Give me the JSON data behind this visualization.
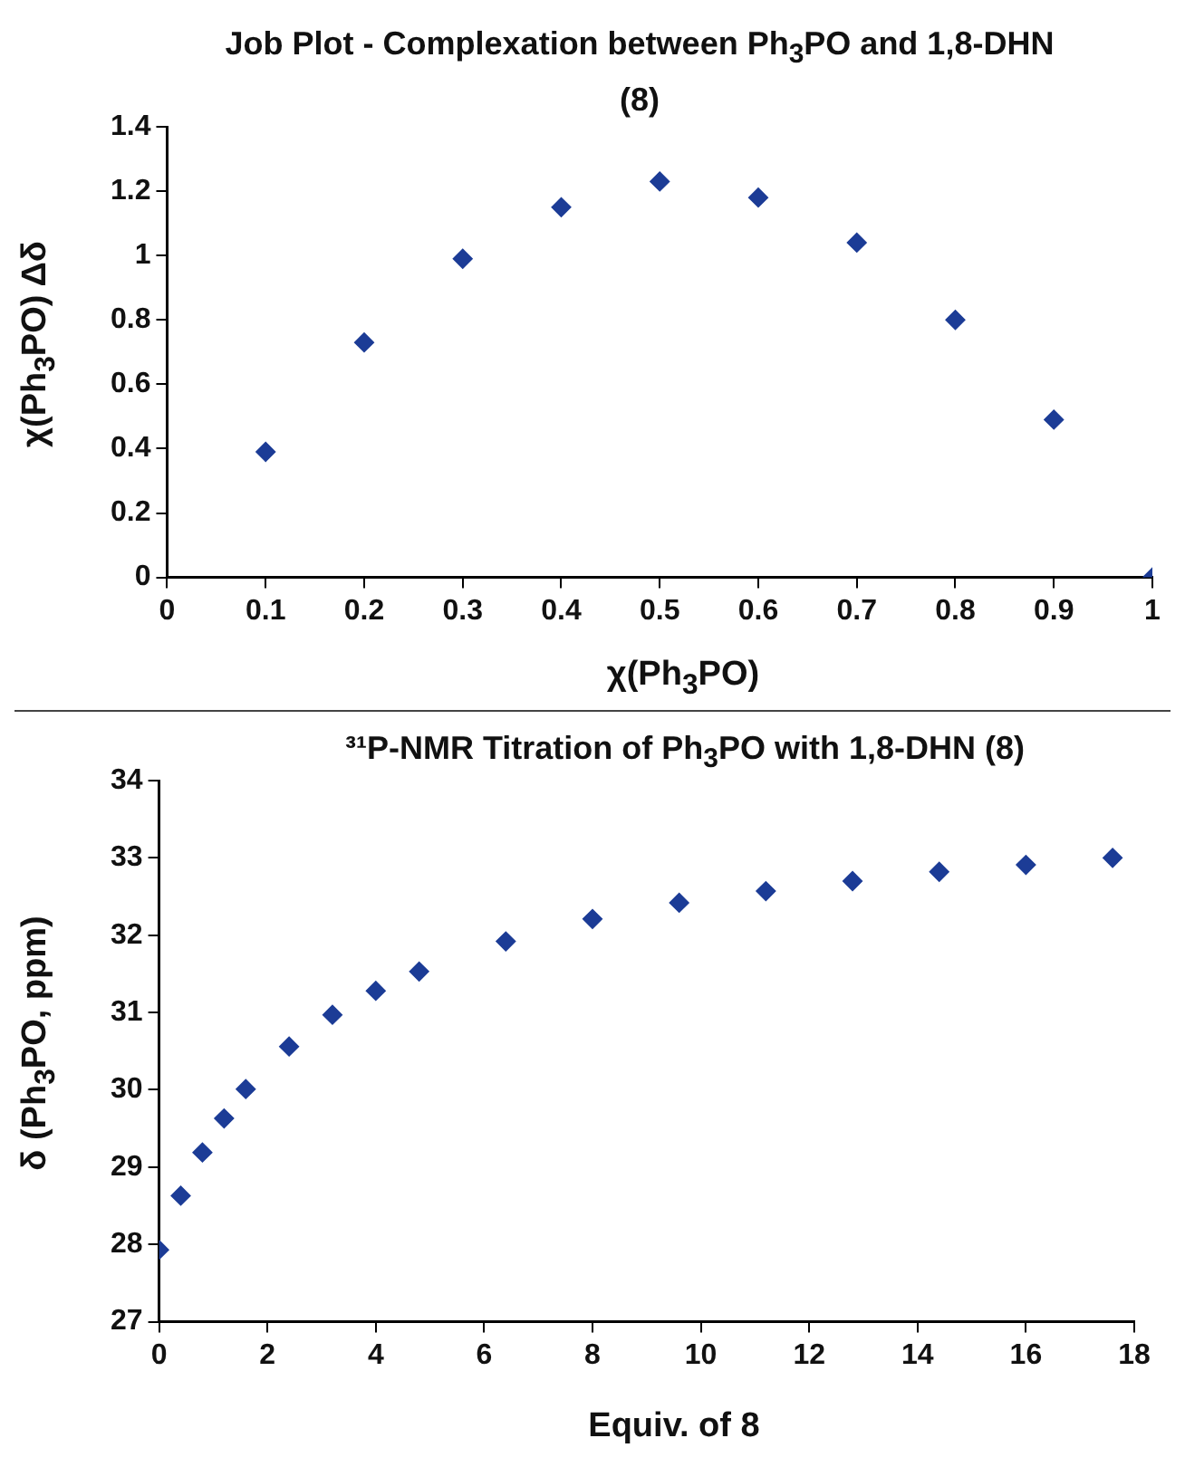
{
  "chart_data": [
    {
      "type": "scatter",
      "title": "Job Plot - Complexation between Ph$_{3}$PO and 1,8-DHN (8)",
      "xlabel": "χ(Ph$_{3}$PO)",
      "ylabel": "χ(Ph$_{3}$PO) Δδ",
      "x": [
        0.1,
        0.2,
        0.3,
        0.4,
        0.5,
        0.6,
        0.7,
        0.8,
        0.9,
        1
      ],
      "values": [
        0.39,
        0.73,
        0.99,
        1.15,
        1.23,
        1.18,
        1.04,
        0.8,
        0.49,
        0
      ],
      "color": "#1c3c96",
      "marker": "diamond",
      "xlim": [
        0,
        1
      ],
      "xticks": [
        0,
        0.1,
        0.2,
        0.3,
        0.4,
        0.5,
        0.6,
        0.7,
        0.8,
        0.9,
        1
      ],
      "ylim": [
        0,
        1.4
      ],
      "yticks": [
        0,
        0.2,
        0.4,
        0.6,
        0.8,
        1,
        1.2,
        1.4
      ],
      "grid": false
    },
    {
      "type": "scatter",
      "title": "³¹P-NMR Titration of Ph$_{3}$PO with 1,8-DHN (8)",
      "xlabel": "Equiv. of 8",
      "ylabel": "δ (Ph$_{3}$PO, ppm)",
      "x": [
        0,
        0.4,
        0.8,
        1.2,
        1.6,
        2.4,
        3.2,
        4,
        4.8,
        6.4,
        8,
        9.6,
        11.2,
        12.8,
        14.4,
        16,
        17.6
      ],
      "values": [
        27.93,
        28.63,
        29.19,
        29.63,
        30.01,
        30.56,
        30.97,
        31.28,
        31.53,
        31.92,
        32.21,
        32.42,
        32.57,
        32.7,
        32.82,
        32.91,
        33.0
      ],
      "color": "#1c3c96",
      "marker": "diamond",
      "xlim": [
        0,
        18
      ],
      "xticks": [
        0,
        2,
        4,
        6,
        8,
        10,
        12,
        14,
        16,
        18
      ],
      "ylim": [
        27,
        34
      ],
      "yticks": [
        27,
        28,
        29,
        30,
        31,
        32,
        33,
        34
      ],
      "grid": false
    }
  ]
}
